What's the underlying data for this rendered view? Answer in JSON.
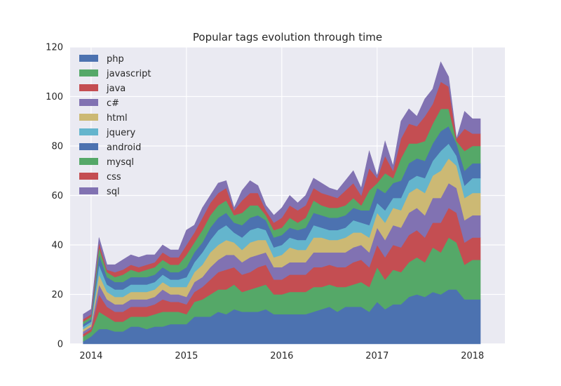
{
  "chart_data": {
    "type": "area",
    "title": "Popular tags evolution through time",
    "xlabel": "",
    "ylabel": "",
    "xlim": [
      2013.78,
      2018.34
    ],
    "ylim": [
      0,
      120
    ],
    "x_ticks": [
      2014,
      2015,
      2016,
      2017,
      2018
    ],
    "y_ticks": [
      0,
      20,
      40,
      60,
      80,
      100,
      120
    ],
    "grid": true,
    "legend_position": "upper-left",
    "x": [
      2013.917,
      2014.0,
      2014.083,
      2014.167,
      2014.25,
      2014.333,
      2014.417,
      2014.5,
      2014.583,
      2014.667,
      2014.75,
      2014.833,
      2014.917,
      2015.0,
      2015.083,
      2015.167,
      2015.25,
      2015.333,
      2015.417,
      2015.5,
      2015.583,
      2015.667,
      2015.75,
      2015.833,
      2015.917,
      2016.0,
      2016.083,
      2016.167,
      2016.25,
      2016.333,
      2016.417,
      2016.5,
      2016.583,
      2016.667,
      2016.75,
      2016.833,
      2016.917,
      2017.0,
      2017.083,
      2017.167,
      2017.25,
      2017.333,
      2017.417,
      2017.5,
      2017.583,
      2017.667,
      2017.75,
      2017.833,
      2017.917,
      2018.0,
      2018.083
    ],
    "totals": [
      12,
      14,
      43,
      32,
      32,
      34,
      36,
      35,
      36,
      36,
      40,
      38,
      38,
      46,
      48,
      55,
      60,
      65,
      66,
      55,
      62,
      66,
      64,
      56,
      52,
      55,
      60,
      57,
      60,
      67,
      65,
      63,
      62,
      66,
      70,
      63,
      78,
      68,
      82,
      72,
      90,
      95,
      92,
      99,
      103,
      114,
      108,
      83,
      94,
      91,
      91
    ],
    "series": [
      {
        "name": "php",
        "color": "#4C72B0",
        "values": [
          1,
          3,
          6,
          6,
          5,
          5,
          7,
          7,
          6,
          7,
          7,
          8,
          8,
          8,
          11,
          11,
          11,
          13,
          12,
          14,
          13,
          13,
          13,
          14,
          12,
          12,
          12,
          12,
          12,
          13,
          14,
          15,
          13,
          15,
          15,
          15,
          13,
          17,
          14,
          16,
          16,
          19,
          20,
          19,
          21,
          20,
          22,
          22,
          18,
          18,
          18
        ]
      },
      {
        "name": "javascript",
        "color": "#55A868",
        "values": [
          2,
          2,
          7,
          5,
          4,
          4,
          4,
          4,
          5,
          5,
          6,
          5,
          5,
          4,
          6,
          7,
          9,
          9,
          10,
          10,
          8,
          9,
          10,
          10,
          8,
          8,
          9,
          9,
          9,
          10,
          9,
          9,
          10,
          8,
          9,
          10,
          10,
          14,
          12,
          14,
          13,
          14,
          15,
          14,
          18,
          17,
          21,
          19,
          14,
          16,
          16
        ]
      },
      {
        "name": "java",
        "color": "#C44E52",
        "values": [
          1,
          1,
          7,
          4,
          4,
          4,
          4,
          4,
          4,
          4,
          5,
          4,
          4,
          4,
          4,
          5,
          6,
          7,
          8,
          7,
          7,
          7,
          8,
          8,
          6,
          6,
          7,
          7,
          7,
          8,
          8,
          8,
          8,
          8,
          9,
          9,
          8,
          9,
          9,
          10,
          10,
          11,
          11,
          10,
          10,
          12,
          12,
          12,
          9,
          9,
          9
        ]
      },
      {
        "name": "c#",
        "color": "#8172B2",
        "values": [
          1,
          1,
          4,
          3,
          3,
          3,
          3,
          3,
          3,
          3,
          4,
          3,
          3,
          3,
          4,
          4,
          5,
          5,
          6,
          5,
          5,
          6,
          5,
          5,
          5,
          5,
          5,
          5,
          5,
          6,
          6,
          5,
          6,
          6,
          6,
          6,
          6,
          7,
          7,
          8,
          8,
          9,
          9,
          9,
          10,
          10,
          10,
          10,
          9,
          9,
          9
        ]
      },
      {
        "name": "html",
        "color": "#CCB974",
        "values": [
          1,
          1,
          4,
          3,
          3,
          3,
          3,
          3,
          3,
          3,
          3,
          3,
          3,
          4,
          4,
          5,
          6,
          6,
          6,
          5,
          5,
          6,
          6,
          5,
          4,
          5,
          6,
          5,
          5,
          6,
          6,
          5,
          5,
          6,
          6,
          5,
          6,
          6,
          7,
          7,
          7,
          8,
          8,
          9,
          9,
          11,
          10,
          9,
          9,
          9,
          9
        ]
      },
      {
        "name": "jquery",
        "color": "#64B5CD",
        "values": [
          1,
          1,
          4,
          3,
          3,
          3,
          3,
          3,
          3,
          3,
          3,
          3,
          3,
          4,
          4,
          5,
          5,
          6,
          6,
          4,
          5,
          5,
          5,
          4,
          4,
          4,
          4,
          4,
          4,
          5,
          4,
          4,
          4,
          4,
          5,
          4,
          5,
          4,
          5,
          4,
          5,
          5,
          5,
          6,
          6,
          8,
          6,
          4,
          5,
          6,
          6
        ]
      },
      {
        "name": "android",
        "color": "#4C72B0",
        "values": [
          1,
          1,
          4,
          3,
          3,
          3,
          3,
          3,
          3,
          3,
          3,
          3,
          3,
          4,
          4,
          4,
          5,
          5,
          5,
          4,
          5,
          5,
          5,
          4,
          4,
          4,
          4,
          4,
          5,
          5,
          5,
          5,
          5,
          5,
          5,
          5,
          6,
          6,
          7,
          6,
          7,
          7,
          7,
          7,
          7,
          8,
          7,
          5,
          6,
          6,
          6
        ]
      },
      {
        "name": "mysql",
        "color": "#55A868",
        "values": [
          1,
          1,
          3,
          2,
          2,
          3,
          3,
          2,
          3,
          3,
          3,
          3,
          3,
          5,
          4,
          5,
          5,
          5,
          5,
          3,
          5,
          5,
          4,
          2,
          3,
          3,
          4,
          3,
          4,
          5,
          4,
          4,
          4,
          4,
          4,
          2,
          8,
          2,
          8,
          2,
          9,
          8,
          6,
          8,
          8,
          9,
          7,
          1,
          8,
          7,
          7
        ]
      },
      {
        "name": "css",
        "color": "#C44E52",
        "values": [
          1,
          1,
          2,
          1,
          2,
          2,
          2,
          2,
          2,
          2,
          3,
          3,
          3,
          4,
          4,
          5,
          5,
          5,
          5,
          2,
          5,
          5,
          5,
          2,
          3,
          4,
          5,
          5,
          5,
          5,
          5,
          5,
          4,
          6,
          6,
          4,
          9,
          2,
          7,
          3,
          8,
          8,
          7,
          10,
          8,
          11,
          9,
          1,
          9,
          5,
          5
        ]
      },
      {
        "name": "sql",
        "color": "#8172B2",
        "values": [
          2,
          2,
          2,
          2,
          3,
          4,
          4,
          4,
          4,
          3,
          3,
          3,
          3,
          6,
          3,
          4,
          3,
          4,
          3,
          1,
          4,
          5,
          3,
          2,
          3,
          4,
          4,
          3,
          4,
          4,
          4,
          3,
          3,
          4,
          5,
          3,
          7,
          1,
          6,
          2,
          7,
          6,
          4,
          7,
          6,
          8,
          4,
          0,
          7,
          6,
          6
        ]
      }
    ]
  }
}
